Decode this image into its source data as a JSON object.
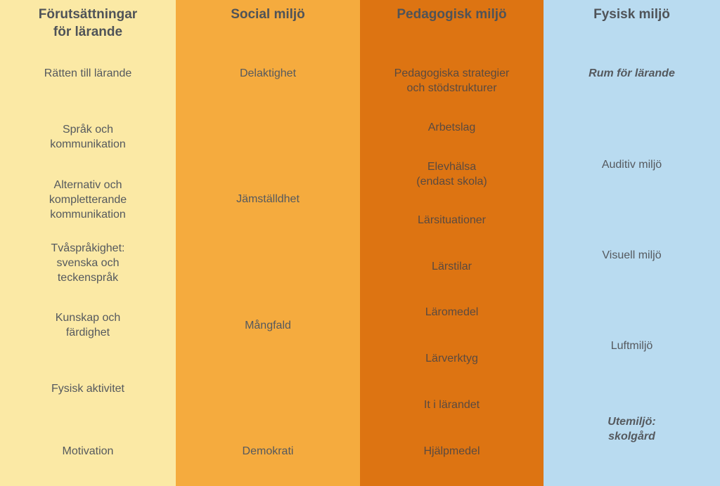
{
  "colors": {
    "column_1": "#fbe9a5",
    "column_2": "#f5ab3e",
    "column_3": "#dd7412",
    "column_4": "#b9dbf0",
    "text": "#55595e"
  },
  "columns": [
    {
      "title": "Förutsättningar\nför lärande",
      "items": [
        "Rätten till lärande",
        "Språk och\nkommunikation",
        "Alternativ och\nkompletterande\nkommunikation",
        "Tvåspråkighet:\nsvenska och\n teckenspråk",
        "Kunskap och\nfärdighet",
        "Fysisk aktivitet",
        "Motivation"
      ]
    },
    {
      "title": "Social miljö",
      "items": [
        "Delaktighet",
        "Jämställdhet",
        "Mångfald",
        "Demokrati"
      ]
    },
    {
      "title": "Pedagogisk miljö",
      "items": [
        "Pedagogiska strategier\noch stödstrukturer",
        "Arbetslag",
        "Elevhälsa\n(endast skola)",
        "Lärsituationer",
        "Lärstilar",
        "Läromedel",
        "Lärverktyg",
        "It i lärandet",
        "Hjälpmedel"
      ]
    },
    {
      "title": "Fysisk miljö",
      "items": [
        "Rum för lärande",
        "Auditiv miljö",
        "Visuell miljö",
        "Luftmiljö",
        "Utemiljö:\nskolgård"
      ]
    }
  ]
}
